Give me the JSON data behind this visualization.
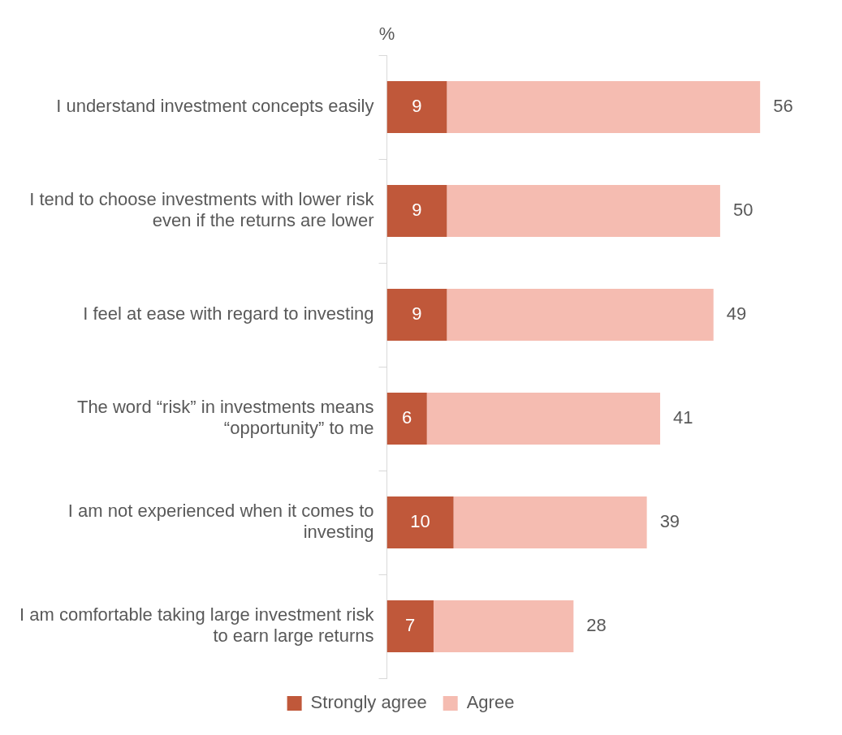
{
  "chart_data": {
    "type": "bar",
    "orientation": "horizontal",
    "stacked": true,
    "xlabel": "%",
    "categories": [
      "I understand investment concepts easily",
      "I tend to choose investments with lower risk even if the returns are lower",
      "I feel at ease with regard to investing",
      "The word “risk” in investments means “opportunity” to me",
      "I am not experienced when it comes to investing",
      "I am comfortable taking large investment risk to earn large returns"
    ],
    "series": [
      {
        "name": "Strongly agree",
        "color": "#c0583a",
        "values": [
          9,
          9,
          9,
          6,
          10,
          7
        ],
        "value_labels": [
          "9",
          "9",
          "9",
          "6",
          "10",
          "7"
        ]
      },
      {
        "name": "Agree",
        "color": "#f5bcb1",
        "values": [
          47,
          41,
          40,
          35,
          29,
          21
        ]
      }
    ],
    "totals": [
      "56",
      "50",
      "49",
      "41",
      "39",
      "28"
    ],
    "legend": "bottom",
    "grid": false
  }
}
